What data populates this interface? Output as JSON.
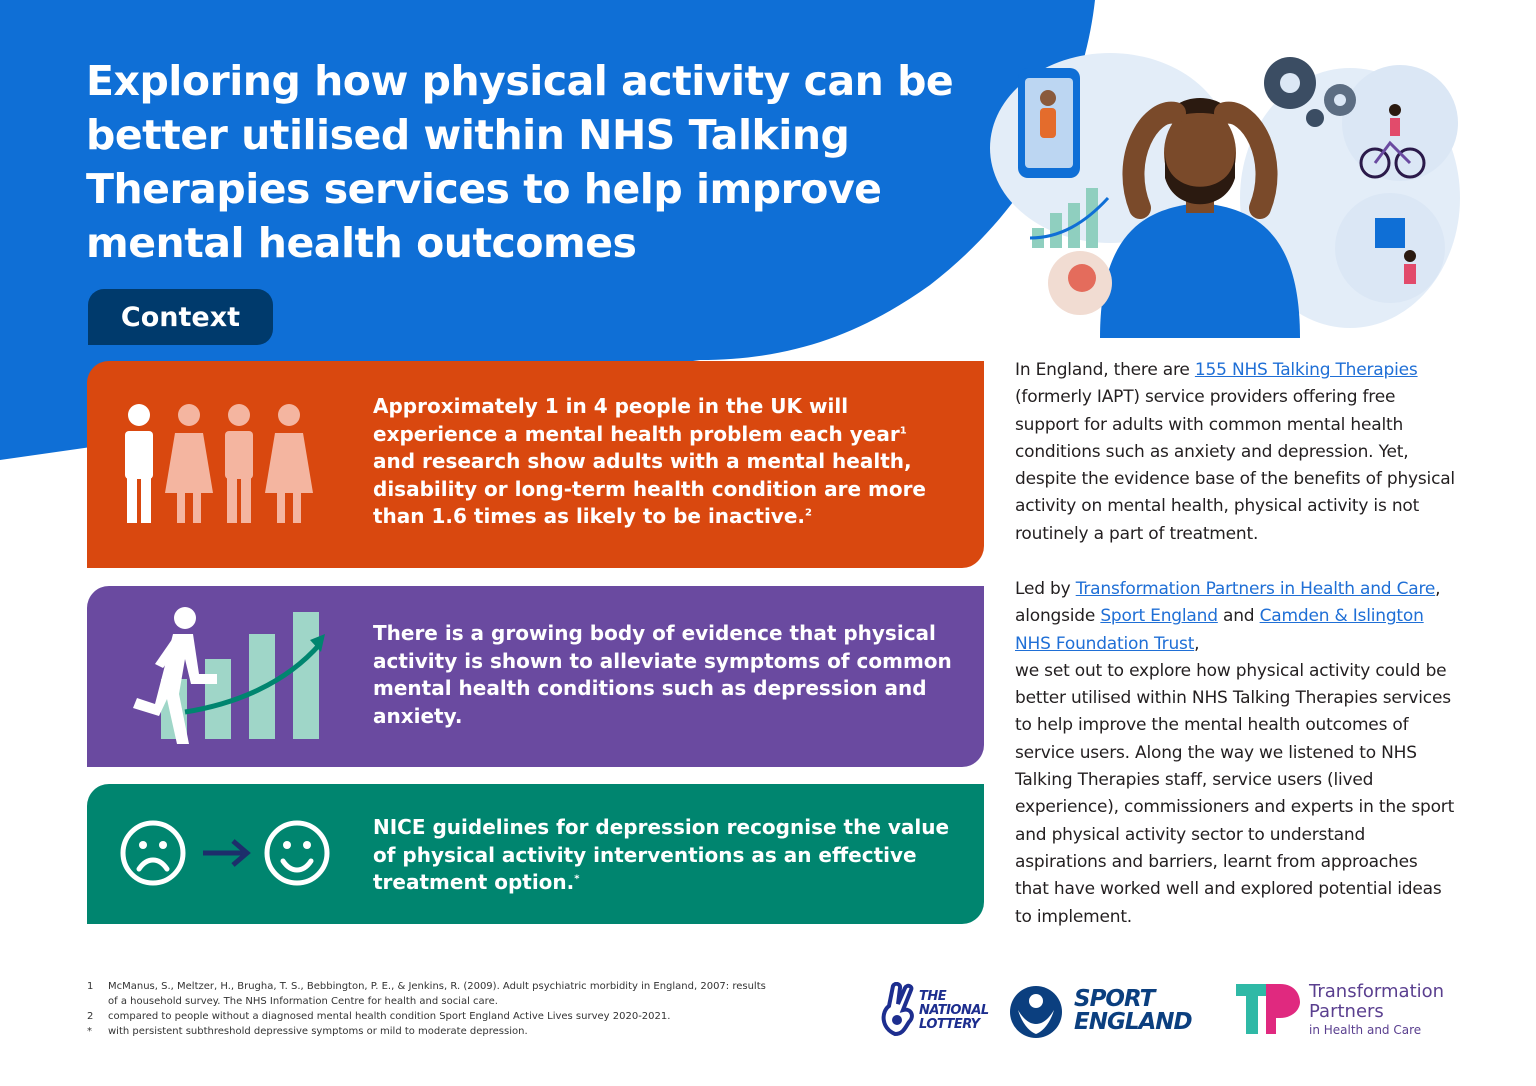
{
  "title": "Exploring how physical activity can be better utilised within NHS Talking Therapies services to help improve mental health outcomes",
  "context_label": "Context",
  "cards": {
    "orange": {
      "text_a": "Approximately 1 in 4 people in the UK will experience a mental health problem each year",
      "sup_a": "1",
      "text_b": " and research show adults with a mental health, disability or long-term health condition are more than 1.6 times as likely to be inactive.",
      "sup_b": "2"
    },
    "purple": {
      "text": "There is a growing body of evidence that physical activity is shown to alleviate symptoms of common mental health conditions such as depression and anxiety."
    },
    "green": {
      "text": "NICE guidelines for depression recognise the value of physical activity interventions as an effective treatment option.",
      "sup": "*"
    }
  },
  "side_text": {
    "p1_a": "In England, there are ",
    "p1_link": "155 NHS Talking Therapies",
    "p1_b": " (formerly IAPT) service providers offering free support for adults with common mental health conditions such as anxiety and depression. Yet, despite the evidence base of the benefits of physical activity on mental health, physical activity is not routinely a part of treatment.",
    "p2_a": "Led by ",
    "p2_link1": "Transformation Partners in Health and Care",
    "p2_b": ", alongside ",
    "p2_link2": "Sport England",
    "p2_c": " and ",
    "p2_link3": "Camden & Islington NHS Foundation Trust",
    "p2_d": ",",
    "p2_e": "we set out to explore how physical activity could be better utilised within NHS Talking Therapies services to help improve the mental health outcomes of service users. Along the way we listened to NHS Talking Therapies staff, service users (lived experience), commissioners and experts in the sport and physical activity sector to understand aspirations and barriers, learnt from approaches that have worked well and explored potential ideas to implement."
  },
  "footnotes": [
    {
      "mark": "1",
      "text": "McManus, S., Meltzer, H., Brugha, T. S., Bebbington, P. E., & Jenkins, R. (2009). Adult psychiatric morbidity in England, 2007: results of a household survey. The NHS Information Centre for health and social care."
    },
    {
      "mark": "2",
      "text": "compared to people without a diagnosed mental health condition Sport England Active Lives survey 2020-2021."
    },
    {
      "mark": "*",
      "text": "with persistent subthreshold depressive symptoms or mild to moderate depression."
    }
  ],
  "logos": {
    "lottery_l1": "THE",
    "lottery_l2": "NATIONAL",
    "lottery_l3": "LOTTERY",
    "sport_l1": "SPORT",
    "sport_l2": "ENGLAND",
    "tp_l1": "Transformation",
    "tp_l2": "Partners",
    "tp_l3": "in Health and Care"
  },
  "colors": {
    "blue": "#0f6fd6",
    "orange": "#d9480f",
    "purple": "#6a4aa0",
    "green": "#00856f",
    "navy": "#003a6c"
  }
}
